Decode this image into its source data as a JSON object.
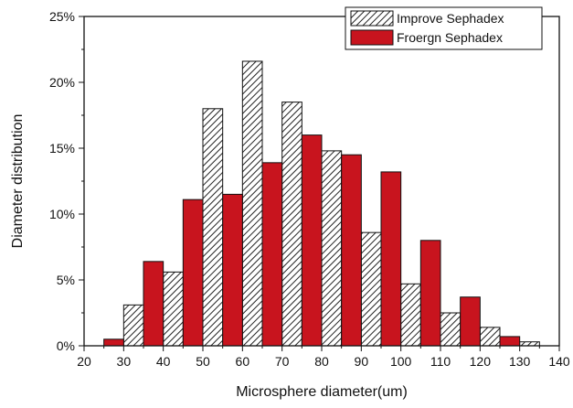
{
  "chart_data": {
    "type": "bar",
    "title": "",
    "xlabel": "Microsphere diameter(um)",
    "ylabel": "Diameter distribution",
    "xlim": [
      20,
      140
    ],
    "ylim": [
      0,
      25
    ],
    "x_ticks": [
      "20",
      "30",
      "40",
      "50",
      "60",
      "70",
      "80",
      "90",
      "100",
      "110",
      "120",
      "130",
      "140"
    ],
    "y_ticks": [
      "0%",
      "5%",
      "10%",
      "15%",
      "20%",
      "25%"
    ],
    "bin_centers": [
      25,
      35,
      45,
      55,
      65,
      75,
      85,
      95,
      105,
      115,
      125,
      135
    ],
    "legend_position": "top-right",
    "grid": false,
    "series": [
      {
        "name": "Improve Sephadex",
        "style": "hatched",
        "color": "#ffffff",
        "values": [
          0,
          3.1,
          5.6,
          18.0,
          21.6,
          18.5,
          14.8,
          8.6,
          4.7,
          2.5,
          1.4,
          0.3
        ]
      },
      {
        "name": "Froergn Sephadex",
        "style": "solid",
        "color": "#c8141e",
        "values": [
          0.5,
          6.4,
          11.1,
          11.5,
          13.9,
          16.0,
          14.5,
          13.2,
          8.0,
          3.7,
          0.7,
          0
        ]
      }
    ]
  }
}
